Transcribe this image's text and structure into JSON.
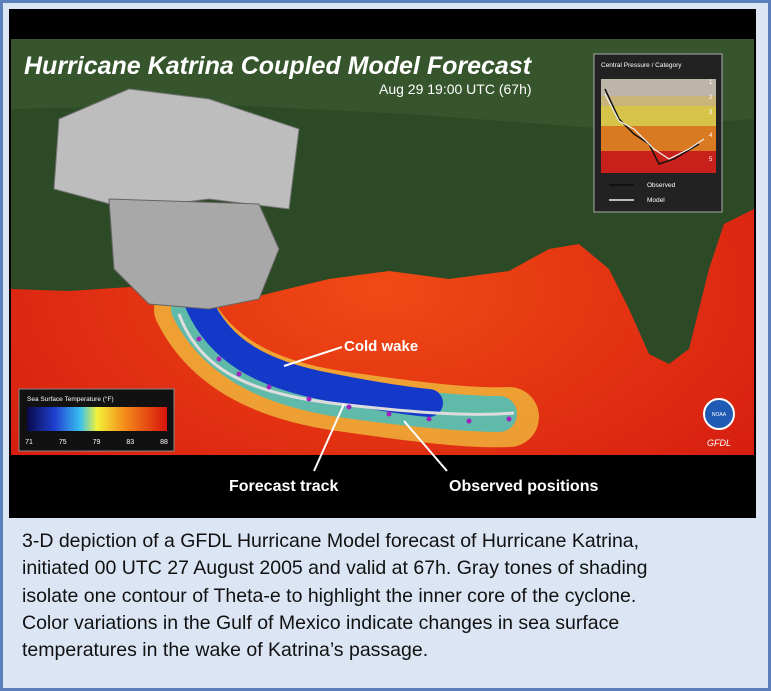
{
  "figure": {
    "title": "Hurricane Katrina Coupled Model Forecast",
    "timestamp": "Aug 29 19:00 UTC (67h)",
    "inset": {
      "title": "Central Pressure / Category",
      "categories": [
        "1",
        "2",
        "3",
        "4",
        "5"
      ],
      "legend": [
        "Observed",
        "Model"
      ]
    },
    "colorbar": {
      "title": "Sea Surface Temperature (°F)",
      "ticks": [
        71,
        75,
        79,
        83,
        88
      ]
    },
    "annotations": {
      "cold_wake": "Cold wake",
      "forecast_track": "Forecast track",
      "observed_positions": "Observed positions"
    },
    "logos": {
      "noaa": "NOAA",
      "gfdl": "GFDL"
    }
  },
  "caption": {
    "lines": [
      "3-D depiction of a GFDL Hurricane Model forecast of Hurricane Katrina,",
      "initiated 00 UTC 27 August 2005 and valid at 67h.  Gray tones of shading",
      "isolate one contour of Theta-e to highlight the inner core of the cyclone.",
      "Color variations in the Gulf of Mexico indicate changes in sea surface",
      "temperatures in the wake of Katrina’s passage."
    ]
  }
}
